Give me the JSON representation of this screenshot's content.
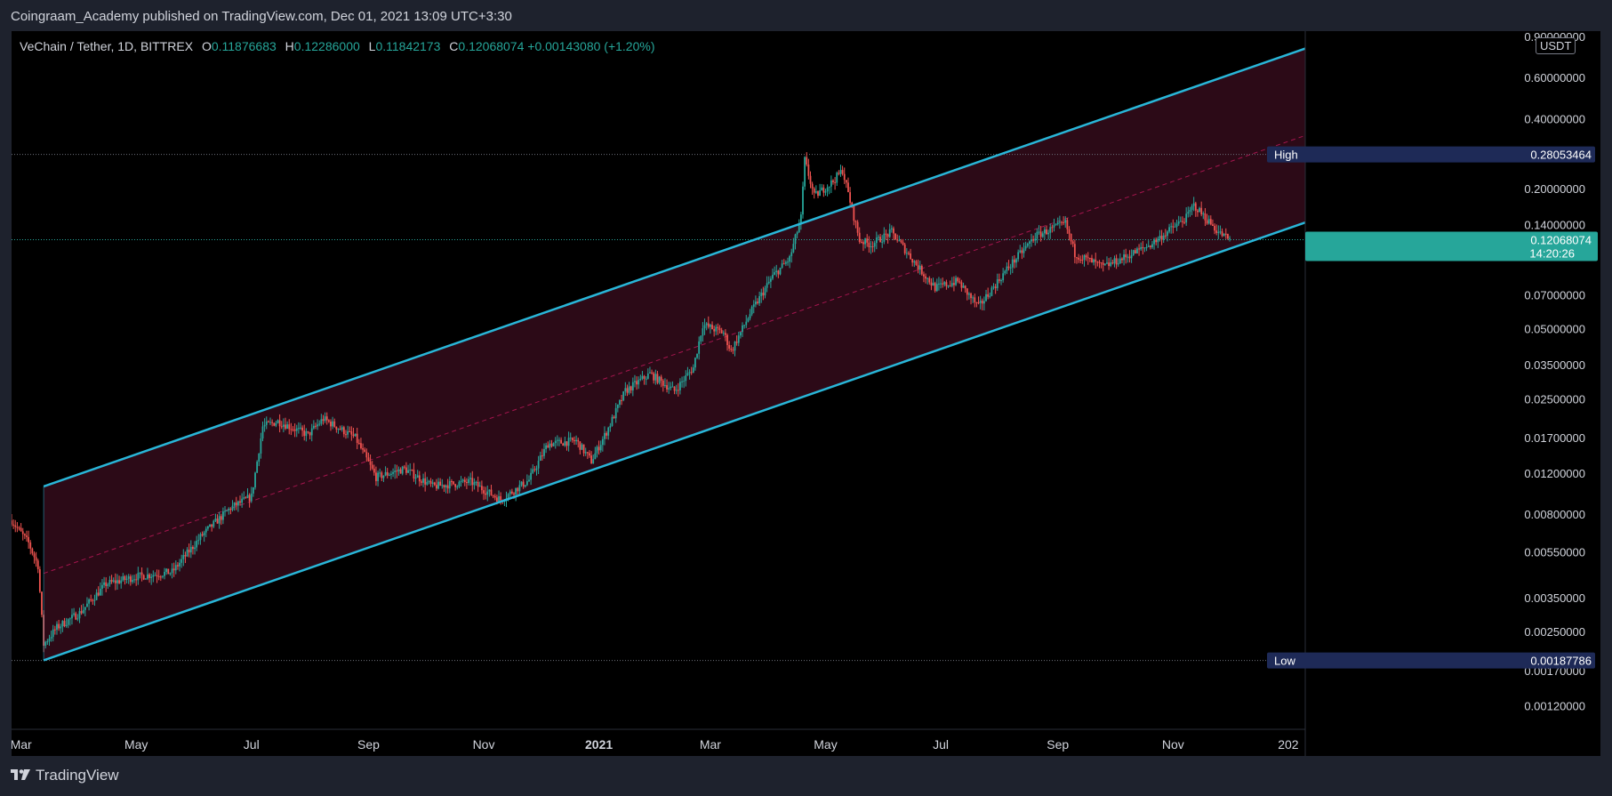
{
  "header": {
    "publisher_line": "Coingraam_Academy published on TradingView.com, Dec 01, 2021 13:09 UTC+3:30"
  },
  "legend": {
    "symbol": "VeChain / Tether, 1D, BITTREX",
    "open_label": "O",
    "open": "0.11876683",
    "high_label": "H",
    "high": "0.12286000",
    "low_label": "L",
    "low": "0.11842173",
    "close_label": "C",
    "close": "0.12068074",
    "change": "+0.00143080 (+1.20%)"
  },
  "currency": "USDT",
  "footer": {
    "brand": "TradingView"
  },
  "colors": {
    "background": "#000000",
    "panel": "#1e222d",
    "channel_line": "#29b6d8",
    "channel_fill": "#2e0b18",
    "midline": "#c2185b",
    "up": "#26a69a",
    "down": "#ef5350",
    "high_low_label_bg": "#1e2a57",
    "last_price_bg": "#26a69a"
  },
  "chart_data": {
    "type": "candlestick",
    "scale": "log",
    "symbol": "VeChain / Tether",
    "timeframe": "1D",
    "x_range": [
      "2020-02-25",
      "2022-01-10"
    ],
    "ylim": [
      0.00095,
      0.95
    ],
    "y_ticks": [
      "0.90000000",
      "0.60000000",
      "0.40000000",
      "0.20000000",
      "0.14000000",
      "0.07000000",
      "0.05000000",
      "0.03500000",
      "0.02500000",
      "0.01700000",
      "0.01200000",
      "0.00800000",
      "0.00550000",
      "0.00350000",
      "0.00250000",
      "0.00170000",
      "0.00120000"
    ],
    "x_ticks": [
      {
        "date": "2020-03-01",
        "label": "Mar"
      },
      {
        "date": "2020-05-01",
        "label": "May"
      },
      {
        "date": "2020-07-01",
        "label": "Jul"
      },
      {
        "date": "2020-09-01",
        "label": "Sep"
      },
      {
        "date": "2020-11-01",
        "label": "Nov"
      },
      {
        "date": "2021-01-01",
        "label": "2021"
      },
      {
        "date": "2021-03-01",
        "label": "Mar"
      },
      {
        "date": "2021-05-01",
        "label": "May"
      },
      {
        "date": "2021-07-01",
        "label": "Jul"
      },
      {
        "date": "2021-09-01",
        "label": "Sep"
      },
      {
        "date": "2021-11-01",
        "label": "Nov"
      },
      {
        "date": "2022-01-01",
        "label": "202"
      }
    ],
    "price_path": [
      [
        "2020-02-25",
        0.0075
      ],
      [
        "2020-03-05",
        0.006
      ],
      [
        "2020-03-10",
        0.0048
      ],
      [
        "2020-03-13",
        0.0022
      ],
      [
        "2020-03-20",
        0.0026
      ],
      [
        "2020-04-01",
        0.003
      ],
      [
        "2020-04-15",
        0.004
      ],
      [
        "2020-05-01",
        0.0043
      ],
      [
        "2020-05-20",
        0.0045
      ],
      [
        "2020-06-05",
        0.0065
      ],
      [
        "2020-06-20",
        0.0085
      ],
      [
        "2020-07-01",
        0.0095
      ],
      [
        "2020-07-07",
        0.019
      ],
      [
        "2020-07-15",
        0.02
      ],
      [
        "2020-07-31",
        0.0175
      ],
      [
        "2020-08-08",
        0.0205
      ],
      [
        "2020-08-25",
        0.017
      ],
      [
        "2020-09-05",
        0.0115
      ],
      [
        "2020-09-20",
        0.0125
      ],
      [
        "2020-10-05",
        0.0105
      ],
      [
        "2020-10-25",
        0.011
      ],
      [
        "2020-11-10",
        0.0092
      ],
      [
        "2020-11-25",
        0.0112
      ],
      [
        "2020-12-05",
        0.016
      ],
      [
        "2020-12-20",
        0.0165
      ],
      [
        "2020-12-28",
        0.0135
      ],
      [
        "2021-01-05",
        0.018
      ],
      [
        "2021-01-15",
        0.027
      ],
      [
        "2021-01-28",
        0.032
      ],
      [
        "2021-02-10",
        0.027
      ],
      [
        "2021-02-20",
        0.034
      ],
      [
        "2021-02-25",
        0.052
      ],
      [
        "2021-03-08",
        0.048
      ],
      [
        "2021-03-12",
        0.04
      ],
      [
        "2021-03-22",
        0.058
      ],
      [
        "2021-04-03",
        0.084
      ],
      [
        "2021-04-12",
        0.1
      ],
      [
        "2021-04-18",
        0.15
      ],
      [
        "2021-04-20",
        0.265
      ],
      [
        "2021-04-25",
        0.185
      ],
      [
        "2021-05-05",
        0.215
      ],
      [
        "2021-05-10",
        0.24
      ],
      [
        "2021-05-19",
        0.12
      ],
      [
        "2021-05-25",
        0.115
      ],
      [
        "2021-06-05",
        0.13
      ],
      [
        "2021-06-20",
        0.09
      ],
      [
        "2021-06-28",
        0.075
      ],
      [
        "2021-07-10",
        0.08
      ],
      [
        "2021-07-21",
        0.062
      ],
      [
        "2021-08-05",
        0.09
      ],
      [
        "2021-08-20",
        0.125
      ],
      [
        "2021-09-05",
        0.142
      ],
      [
        "2021-09-10",
        0.105
      ],
      [
        "2021-09-25",
        0.092
      ],
      [
        "2021-10-05",
        0.1
      ],
      [
        "2021-10-20",
        0.115
      ],
      [
        "2021-11-08",
        0.15
      ],
      [
        "2021-11-12",
        0.17
      ],
      [
        "2021-11-25",
        0.13
      ],
      [
        "2021-12-01",
        0.1207
      ]
    ],
    "channel": {
      "upper": [
        [
          "2020-03-13",
          0.0105
        ],
        [
          "2022-01-10",
          0.8
        ]
      ],
      "lower": [
        [
          "2020-03-13",
          0.00188
        ],
        [
          "2022-01-10",
          0.143
        ]
      ]
    },
    "levels": {
      "high": {
        "label": "High",
        "value": "0.28053464"
      },
      "low": {
        "label": "Low",
        "value": "0.00187786"
      },
      "last": {
        "value": "0.12068074",
        "countdown": "14:20:26"
      }
    }
  }
}
